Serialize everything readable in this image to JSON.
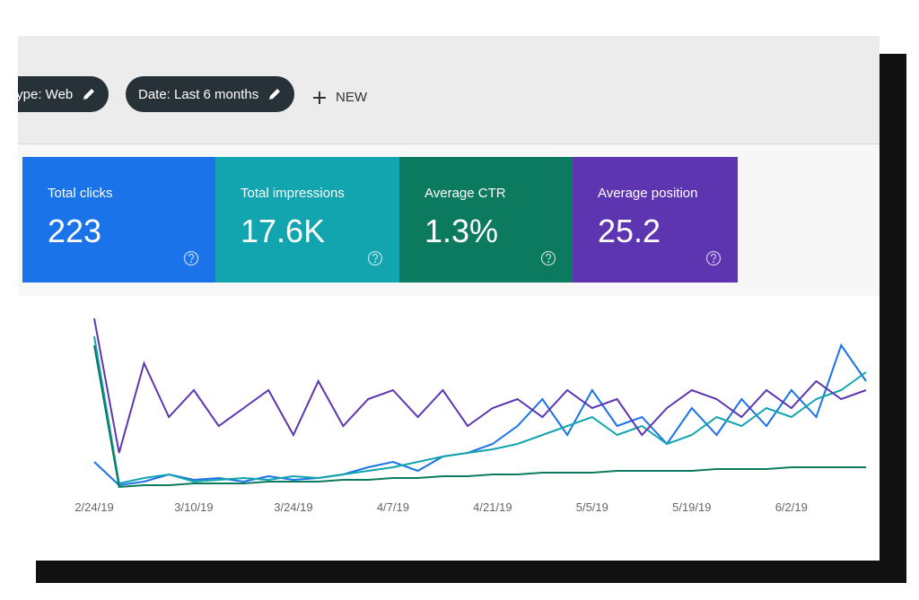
{
  "toolbar": {
    "chips": [
      "type: Web",
      "Date: Last 6 months"
    ],
    "new_button": "NEW"
  },
  "metrics": [
    223,
    "17.6K",
    "1.3%",
    25.2
  ],
  "chart_data": {
    "type": "line",
    "categories": [
      "2/24/19",
      null,
      null,
      null,
      "3/10/19",
      null,
      null,
      null,
      "3/24/19",
      null,
      null,
      null,
      "4/7/19",
      null,
      null,
      null,
      "4/21/19",
      null,
      null,
      null,
      "5/5/19",
      null,
      null,
      null,
      "5/19/19",
      null,
      null,
      null,
      "6/2/19",
      null,
      null,
      null
    ],
    "ylim": [
      0,
      100
    ],
    "series": [
      {
        "name": "Total clicks",
        "color": "#1a73e8",
        "values": [
          15,
          2,
          4,
          8,
          5,
          6,
          4,
          7,
          5,
          6,
          8,
          12,
          15,
          10,
          18,
          20,
          25,
          35,
          50,
          30,
          55,
          35,
          40,
          25,
          45,
          30,
          50,
          35,
          55,
          40,
          80,
          60
        ]
      },
      {
        "name": "Total impressions",
        "color": "#12a4af",
        "values": [
          85,
          3,
          6,
          8,
          4,
          5,
          6,
          5,
          7,
          6,
          8,
          10,
          12,
          15,
          18,
          20,
          22,
          25,
          30,
          35,
          40,
          30,
          35,
          25,
          30,
          40,
          35,
          45,
          40,
          50,
          55,
          65
        ]
      },
      {
        "name": "Average CTR",
        "color": "#0b7a5e",
        "values": [
          80,
          1,
          2,
          2,
          3,
          3,
          3,
          4,
          4,
          4,
          5,
          5,
          6,
          6,
          7,
          7,
          8,
          8,
          9,
          9,
          9,
          10,
          10,
          10,
          10,
          11,
          11,
          11,
          12,
          12,
          12,
          12
        ]
      },
      {
        "name": "Average position",
        "color": "#5e35b1",
        "values": [
          95,
          20,
          70,
          40,
          55,
          35,
          45,
          55,
          30,
          60,
          35,
          50,
          55,
          40,
          55,
          35,
          45,
          50,
          40,
          55,
          45,
          50,
          30,
          45,
          55,
          50,
          40,
          55,
          45,
          60,
          50,
          55
        ]
      }
    ]
  }
}
